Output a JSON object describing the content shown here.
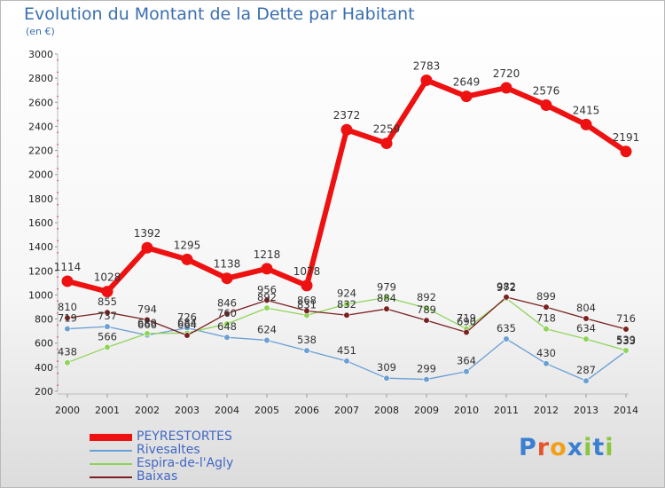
{
  "chart_data": {
    "type": "line",
    "title": "Evolution du Montant de la Dette par Habitant",
    "subtitle": "(en €)",
    "categories": [
      "2000",
      "2001",
      "2002",
      "2003",
      "2004",
      "2005",
      "2006",
      "2007",
      "2008",
      "2009",
      "2010",
      "2011",
      "2012",
      "2013",
      "2014"
    ],
    "ylim": [
      200,
      3000
    ],
    "yticks": [
      200,
      400,
      600,
      800,
      1000,
      1200,
      1400,
      1600,
      1800,
      2000,
      2200,
      2400,
      2600,
      2800,
      3000
    ],
    "grid": false,
    "legend_position": "bottom-left",
    "series": [
      {
        "name": "PEYRESTORTES",
        "color": "#ee1111",
        "values": [
          1114,
          1028,
          1392,
          1295,
          1138,
          1218,
          1078,
          2372,
          2259,
          2783,
          2649,
          2720,
          2576,
          2415,
          2191
        ]
      },
      {
        "name": "Rivesaltes",
        "color": "#6a9fd4",
        "values": [
          719,
          737,
          666,
          726,
          648,
          624,
          538,
          451,
          309,
          299,
          364,
          635,
          430,
          287,
          533
        ]
      },
      {
        "name": "Espira-de-l'Agly",
        "color": "#8fd45a",
        "values": [
          438,
          566,
          680,
          684,
          760,
          892,
          831,
          924,
          979,
          892,
          719,
          972,
          718,
          634,
          539
        ]
      },
      {
        "name": "Baixas",
        "color": "#7a2020",
        "values": [
          810,
          855,
          794,
          664,
          846,
          956,
          868,
          832,
          884,
          789,
          690,
          982,
          899,
          804,
          716
        ]
      }
    ]
  },
  "logo": {
    "text": "Proxiti",
    "colors": [
      "#3b7fd0",
      "#e8542a",
      "#f2a01c",
      "#3b7fd0",
      "#8cc63e",
      "#3b7fd0",
      "#8cc63e"
    ]
  }
}
